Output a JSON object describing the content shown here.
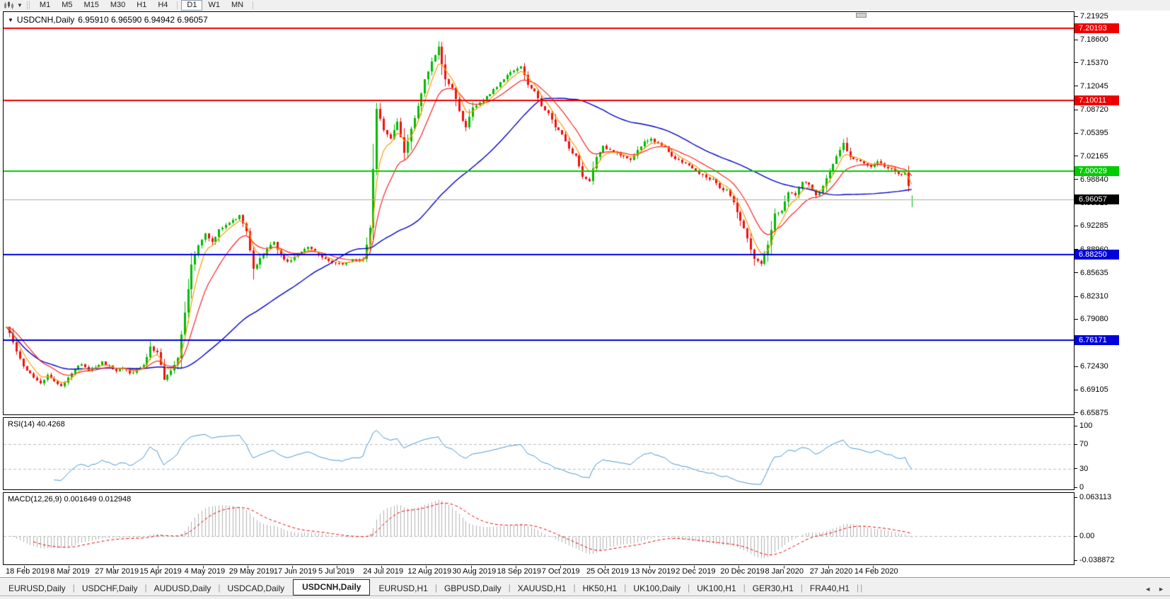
{
  "toolbar": {
    "chart_icon": "charts-toolbar-icon",
    "dropdown_caret": "▼",
    "timeframes": [
      "M1",
      "M5",
      "M15",
      "M30",
      "H1",
      "H4",
      "D1",
      "W1",
      "MN"
    ],
    "active_timeframe": "D1"
  },
  "chart": {
    "title": "USDCNH,Daily",
    "ohlc": "6.95910 6.96590 6.94942 6.96057",
    "dropdown_icon": "▼"
  },
  "chart_data": {
    "type": "candlestick",
    "symbol": "USDCNH",
    "timeframe": "Daily",
    "last_ohlc": {
      "open": 6.9591,
      "high": 6.9659,
      "low": 6.94942,
      "close": 6.96057
    },
    "price_axis": {
      "top": 7.21925,
      "bottom": 6.65875,
      "tick_step": 0.03325,
      "ticks": [
        "7.21925",
        "7.18600",
        "7.15370",
        "7.12045",
        "7.08720",
        "7.05395",
        "7.02165",
        "6.98840",
        "6.95515",
        "6.92285",
        "6.88960",
        "6.85635",
        "6.82310",
        "6.79080",
        "6.75755",
        "6.72430",
        "6.69105",
        "6.65875"
      ]
    },
    "horizontal_lines": [
      {
        "price": 7.20193,
        "label": "7.20193",
        "color": "#ee0000"
      },
      {
        "price": 7.10011,
        "label": "7.10011",
        "color": "#ee0000"
      },
      {
        "price": 7.00029,
        "label": "7.00029",
        "color": "#00cc00"
      },
      {
        "price": 6.8825,
        "label": "6.88250",
        "color": "#0000dd"
      },
      {
        "price": 6.76171,
        "label": "6.76171",
        "color": "#0000dd"
      }
    ],
    "current_price": {
      "value": 6.96057,
      "label": "6.96057",
      "badge_color": "#000000",
      "line_color": "#aaaaaa"
    },
    "candles": {
      "up_color": "#00bb00",
      "down_color": "#ee1111",
      "bars_per_point": 2,
      "closes": [
        6.78,
        6.758,
        6.735,
        6.718,
        6.708,
        6.7,
        6.712,
        6.703,
        6.696,
        6.708,
        6.72,
        6.727,
        6.718,
        6.723,
        6.731,
        6.725,
        6.717,
        6.721,
        6.714,
        6.719,
        6.726,
        6.752,
        6.744,
        6.705,
        6.718,
        6.736,
        6.8,
        6.868,
        6.895,
        6.912,
        6.9,
        6.918,
        6.924,
        6.931,
        6.938,
        6.915,
        6.862,
        6.877,
        6.89,
        6.9,
        6.882,
        6.872,
        6.879,
        6.886,
        6.893,
        6.886,
        6.878,
        6.873,
        6.87,
        6.868,
        6.872,
        6.874,
        6.876,
        6.92,
        7.088,
        7.058,
        7.046,
        7.07,
        7.026,
        7.06,
        7.092,
        7.13,
        7.155,
        7.176,
        7.13,
        7.118,
        7.085,
        7.062,
        7.09,
        7.097,
        7.106,
        7.116,
        7.126,
        7.136,
        7.142,
        7.148,
        7.122,
        7.113,
        7.092,
        7.082,
        7.062,
        7.052,
        7.032,
        7.022,
        6.992,
        6.986,
        7.02,
        7.036,
        7.03,
        7.026,
        7.021,
        7.016,
        7.03,
        7.042,
        7.046,
        7.04,
        7.035,
        7.021,
        7.016,
        7.011,
        7.004,
        6.996,
        6.991,
        6.989,
        6.976,
        6.974,
        6.956,
        6.93,
        6.905,
        6.876,
        6.869,
        6.896,
        6.94,
        6.944,
        6.97,
        6.966,
        6.985,
        6.981,
        6.966,
        6.979,
        7.0,
        7.021,
        7.04,
        7.02,
        7.016,
        7.011,
        7.006,
        7.014,
        7.006,
        7.004,
        6.996,
        6.998,
        6.9606
      ]
    },
    "moving_averages": [
      {
        "name": "fast",
        "type": "ema",
        "period": 5,
        "color": "#ff9900"
      },
      {
        "name": "medium",
        "type": "ema",
        "period": 13,
        "color": "#ff2222"
      },
      {
        "name": "slow",
        "type": "sma",
        "period": 50,
        "color": "#0000cc"
      }
    ],
    "x_axis_dates": [
      "18 Feb 2019",
      "8 Mar 2019",
      "27 Mar 2019",
      "15 Apr 2019",
      "4 May 2019",
      "29 May 2019",
      "17 Jun 2019",
      "5 Jul 2019",
      "24 Jul 2019",
      "12 Aug 2019",
      "30 Aug 2019",
      "18 Sep 2019",
      "7 Oct 2019",
      "25 Oct 2019",
      "13 Nov 2019",
      "2 Dec 2019",
      "20 Dec 2019",
      "8 Jan 2020",
      "27 Jan 2020",
      "14 Feb 2020"
    ],
    "rsi": {
      "label": "RSI(14) 40.4268",
      "period": 14,
      "current": 40.4268,
      "levels": [
        70,
        30
      ],
      "range": [
        0,
        100
      ],
      "axis_ticks": [
        "100",
        "70",
        "30",
        "0"
      ],
      "axis_values": [
        100,
        70,
        30,
        0
      ],
      "line_color": "#4a96d2",
      "level_color": "#bbbbbb"
    },
    "macd": {
      "label": "MACD(12,26,9) 0.001649 0.012948",
      "fast": 12,
      "slow": 26,
      "signal_period": 9,
      "current_macd": 0.001649,
      "current_signal": 0.012948,
      "axis_ticks": [
        "0.063113",
        "0.00",
        "-0.038872"
      ],
      "axis_values": [
        0.063113,
        0,
        -0.038872
      ],
      "histogram_color": "#b0b0b0",
      "signal_color": "#ee0000",
      "zero_line_color": "#bbbbbb"
    }
  },
  "tabs": {
    "items": [
      "EURUSD,Daily",
      "USDCHF,Daily",
      "AUDUSD,Daily",
      "USDCAD,Daily",
      "USDCNH,Daily",
      "EURUSD,H1",
      "GBPUSD,Daily",
      "XAUUSD,H1",
      "HK50,H1",
      "UK100,Daily",
      "UK100,H1",
      "GER30,H1",
      "FRA40,H1"
    ],
    "active": "USDCNH,Daily",
    "scroll_left": "◄",
    "scroll_right": "►"
  }
}
